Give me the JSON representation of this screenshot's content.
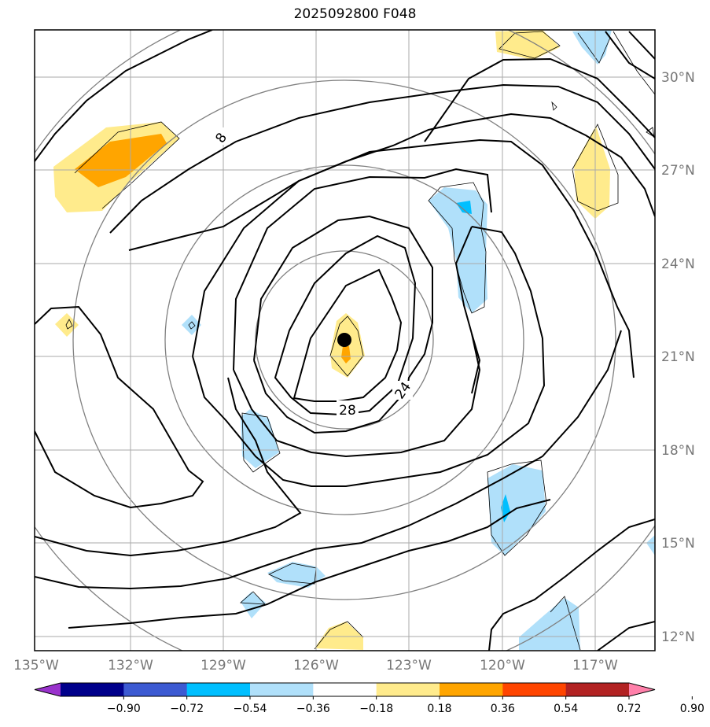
{
  "title": "2025092800 F048",
  "map": {
    "lat_labels": [
      "30°N",
      "27°N",
      "24°N",
      "21°N",
      "18°N",
      "15°N",
      "12°N"
    ],
    "lon_labels": [
      "135°W",
      "132°W",
      "129°W",
      "126°W",
      "123°W",
      "120°W",
      "117°W"
    ],
    "contour_labels": [
      "8",
      "24",
      "28"
    ],
    "storm_center": {
      "lon": -125.0,
      "lat": 21.5
    }
  },
  "colorbar": {
    "ticks": [
      "−0.90",
      "−0.72",
      "−0.54",
      "−0.36",
      "−0.18",
      "0.18",
      "0.36",
      "0.54",
      "0.72",
      "0.90"
    ],
    "colors": [
      "#9932cc",
      "#00008b",
      "#3c5ad2",
      "#00bfff",
      "#b0e0fa",
      "#ffffff",
      "#ffeb8c",
      "#ffa500",
      "#ff4500",
      "#b22222",
      "#ff80aa"
    ]
  }
}
